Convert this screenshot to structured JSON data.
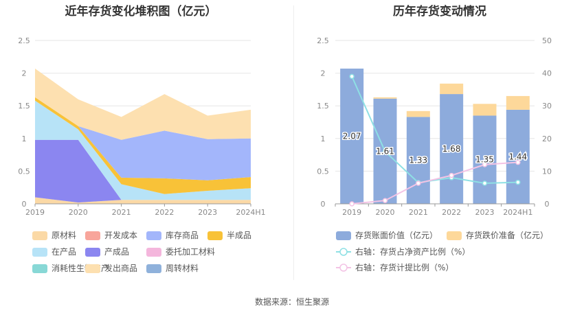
{
  "source": "数据来源：恒生聚源",
  "chart_data": [
    {
      "type": "area",
      "stacked": true,
      "title": "近年存货变化堆积图（亿元）",
      "categories": [
        "2019",
        "2020",
        "2021",
        "2022",
        "2023",
        "2024H1"
      ],
      "ylim": [
        0,
        2.5
      ],
      "yticks": [
        "0",
        "0.5",
        "1",
        "1.5",
        "2",
        "2.5"
      ],
      "series": [
        {
          "name": "委托加工材料",
          "color": "#f4b6dc",
          "values": [
            0.0,
            0.0,
            0.0,
            0.0,
            0.0,
            0.0
          ]
        },
        {
          "name": "原材料",
          "color": "#fbd9a6",
          "values": [
            0.1,
            0.02,
            0.06,
            0.06,
            0.06,
            0.06
          ]
        },
        {
          "name": "产成品",
          "color": "#8b86f0",
          "values": [
            0.88,
            0.96,
            0.0,
            0.0,
            0.0,
            0.0
          ]
        },
        {
          "name": "在产品",
          "color": "#b7e3f7",
          "values": [
            0.6,
            0.16,
            0.24,
            0.09,
            0.14,
            0.18
          ]
        },
        {
          "name": "半成品",
          "color": "#f8c238",
          "values": [
            0.05,
            0.05,
            0.1,
            0.24,
            0.16,
            0.17
          ]
        },
        {
          "name": "库存商品",
          "color": "#a3b6fb",
          "values": [
            0.0,
            0.0,
            0.58,
            0.73,
            0.63,
            0.59
          ]
        },
        {
          "name": "发出商品",
          "color": "#fde0b0",
          "values": [
            0.44,
            0.41,
            0.35,
            0.56,
            0.36,
            0.44
          ]
        },
        {
          "name": "开发成本",
          "color": "#f8a59b",
          "values": [
            0.0,
            0.0,
            0.0,
            0.0,
            0.0,
            0.0
          ]
        },
        {
          "name": "消耗性生物资产",
          "color": "#88d8d6",
          "values": [
            0.0,
            0.0,
            0.0,
            0.0,
            0.0,
            0.0
          ]
        },
        {
          "name": "周转材料",
          "color": "#8fb1db",
          "values": [
            0.0,
            0.0,
            0.0,
            0.0,
            0.0,
            0.0
          ]
        }
      ],
      "legend": [
        {
          "name": "原材料",
          "color": "#fbd9a6"
        },
        {
          "name": "开发成本",
          "color": "#f8a59b"
        },
        {
          "name": "库存商品",
          "color": "#a3b6fb"
        },
        {
          "name": "半成品",
          "color": "#f8c238"
        },
        {
          "name": "在产品",
          "color": "#b7e3f7"
        },
        {
          "name": "产成品",
          "color": "#8b86f0"
        },
        {
          "name": "委托加工材料",
          "color": "#f4b6dc"
        },
        {
          "name": "消耗性生物资产",
          "color": "#88d8d6"
        },
        {
          "name": "发出商品",
          "color": "#fde0b0"
        },
        {
          "name": "周转材料",
          "color": "#8fb1db"
        }
      ]
    },
    {
      "type": "bar",
      "title": "历年存货变动情况",
      "categories": [
        "2019",
        "2020",
        "2021",
        "2022",
        "2023",
        "2024H1"
      ],
      "ylim": [
        0,
        2.5
      ],
      "yticks": [
        "0",
        "0.5",
        "1",
        "1.5",
        "2",
        "2.5"
      ],
      "y2lim": [
        0,
        50
      ],
      "y2ticks": [
        "0",
        "10",
        "20",
        "30",
        "40",
        "50"
      ],
      "bar_series": [
        {
          "name": "存货账面价值（亿元）",
          "color": "#8dabdc",
          "values": [
            2.07,
            1.61,
            1.33,
            1.68,
            1.35,
            1.44
          ],
          "labels": [
            "2.07",
            "1.61",
            "1.33",
            "1.68",
            "1.35",
            "1.44"
          ]
        },
        {
          "name": "存货跌价准备（亿元）",
          "color": "#fdd89a",
          "values": [
            0.0,
            0.02,
            0.09,
            0.16,
            0.18,
            0.21
          ]
        }
      ],
      "line_series": [
        {
          "name": "右轴：存货占净资产比例（%）",
          "color": "#8ee0e4",
          "values": [
            39.0,
            16.0,
            6.5,
            8.0,
            6.3,
            6.6
          ]
        },
        {
          "name": "右轴：存货计提比例（%）",
          "color": "#f3c3e5",
          "values": [
            0.0,
            1.0,
            6.3,
            8.7,
            12.0,
            12.7
          ]
        }
      ]
    }
  ]
}
